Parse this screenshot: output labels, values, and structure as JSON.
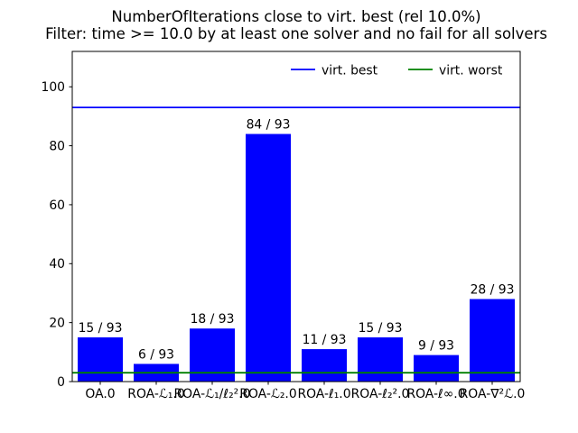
{
  "window": {
    "background": "#ffffff"
  },
  "chart_data": {
    "type": "bar",
    "title": "NumberOfIterations close to virt. best (rel 10.0%)",
    "subtitle": "Filter: time >= 10.0 by at least one solver and no fail for all solvers",
    "categories": [
      "OA.0",
      "ROA-ℒ₁.0",
      "ROA-ℒ₁/ℓ₂².0",
      "ROA-ℒ₂.0",
      "ROA-ℓ₁.0",
      "ROA-ℓ₂².0",
      "ROA-ℓ∞.0",
      "ROA-∇²ℒ.0"
    ],
    "values": [
      15,
      6,
      18,
      84,
      11,
      15,
      9,
      28
    ],
    "total": 93,
    "bar_labels": [
      "15 / 93",
      "6 / 93",
      "18 / 93",
      "84 / 93",
      "11 / 93",
      "15 / 93",
      "9 / 93",
      "28 / 93"
    ],
    "bar_color": "#0000ff",
    "reference_lines": [
      {
        "label": "virt. best",
        "value": 93,
        "color": "#0000ff"
      },
      {
        "label": "virt. worst",
        "value": 3,
        "color": "#008000"
      }
    ],
    "legend": {
      "entries": [
        "virt. best",
        "virt. worst"
      ],
      "frame": false,
      "position": "upper center-right"
    },
    "yticks": [
      0,
      20,
      40,
      60,
      80,
      100
    ],
    "ylim": [
      0,
      112
    ],
    "xlabel": "",
    "ylabel": "",
    "grid": false,
    "axis_color": "#000000",
    "text_color": "#000000"
  }
}
